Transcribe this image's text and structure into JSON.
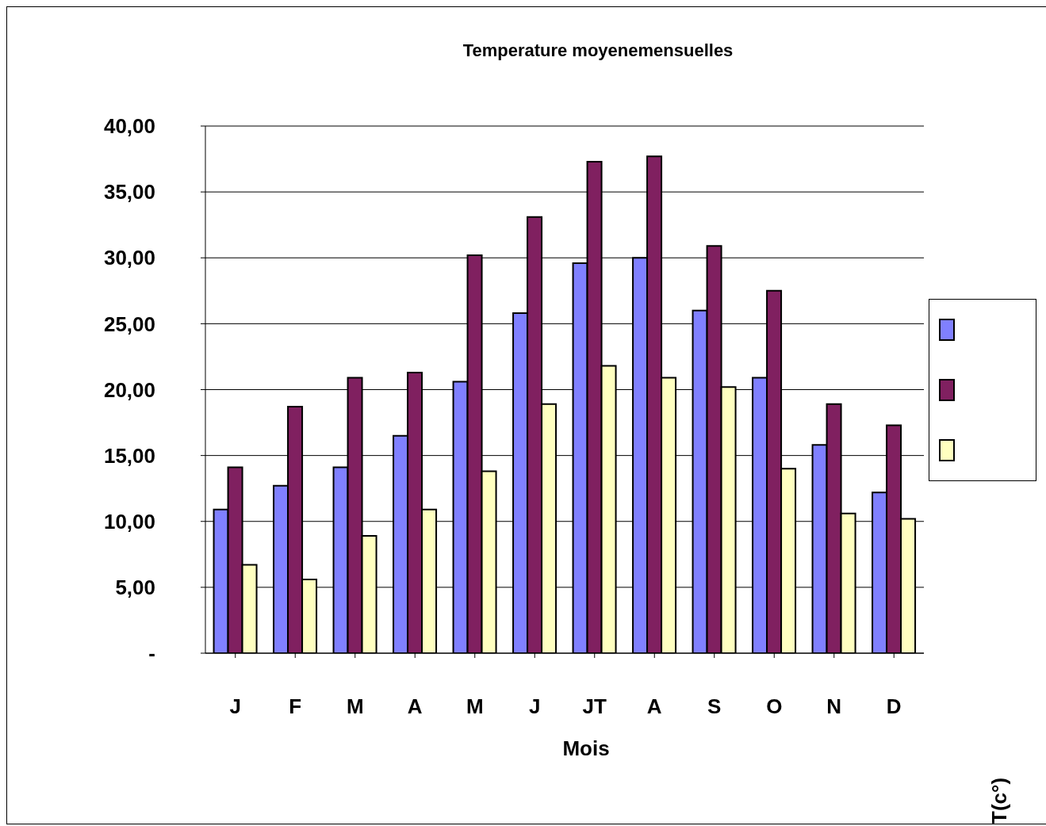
{
  "chart_data": {
    "type": "bar",
    "title": "Temperature moyenemensuelles",
    "xlabel": "Mois",
    "ylabel": "T(c°)",
    "categories": [
      "J",
      "F",
      "M",
      "A",
      "M",
      "J",
      "JT",
      "A",
      "S",
      "O",
      "N",
      "D"
    ],
    "series": [
      {
        "color": "#8080ff",
        "values": [
          10.9,
          12.7,
          14.1,
          16.5,
          20.6,
          25.8,
          29.6,
          30.0,
          26.0,
          20.9,
          15.8,
          12.2
        ]
      },
      {
        "color": "#802060",
        "values": [
          14.1,
          18.7,
          20.9,
          21.3,
          30.2,
          33.1,
          37.3,
          37.7,
          30.9,
          27.5,
          18.9,
          17.3
        ]
      },
      {
        "color": "#ffffc0",
        "values": [
          6.7,
          5.6,
          8.9,
          10.9,
          13.8,
          18.9,
          21.8,
          20.9,
          20.2,
          14.0,
          10.6,
          10.2
        ]
      }
    ],
    "ylim": [
      0,
      40
    ],
    "yticks": [
      {
        "value": 0,
        "label": "-"
      },
      {
        "value": 5,
        "label": "5,00"
      },
      {
        "value": 10,
        "label": "10,00"
      },
      {
        "value": 15,
        "label": "15,00"
      },
      {
        "value": 20,
        "label": "20,00"
      },
      {
        "value": 25,
        "label": "25,00"
      },
      {
        "value": 30,
        "label": "30,00"
      },
      {
        "value": 35,
        "label": "35,00"
      },
      {
        "value": 40,
        "label": "40,00"
      }
    ],
    "grid": "y"
  }
}
